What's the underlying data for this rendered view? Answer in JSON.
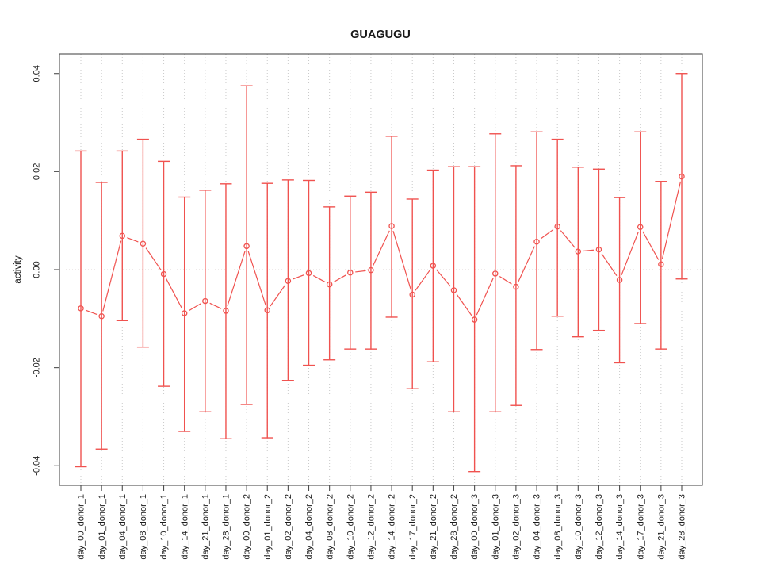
{
  "chart_data": {
    "type": "line",
    "title": "GUAGUGU",
    "xlabel": "",
    "ylabel": "activity",
    "ylim": [
      -0.044,
      0.044
    ],
    "yticks": [
      -0.04,
      -0.02,
      0,
      0.02,
      0.04
    ],
    "ytick_labels": [
      "-0.04",
      "-0.02",
      "0.00",
      "0.02",
      "0.04"
    ],
    "grid": "vertical-dotted-per-category-plus-dotted-zero-line",
    "legend": "none",
    "point_style": "open-circle-with-error-bars",
    "series_color": "#f0524f",
    "gridline_color": "#c9c9c9",
    "zero_line_color": "#dcd3d3",
    "axis_color": "#4d4d4d",
    "categories": [
      "day_00_donor_1",
      "day_01_donor_1",
      "day_04_donor_1",
      "day_08_donor_1",
      "day_10_donor_1",
      "day_14_donor_1",
      "day_21_donor_1",
      "day_28_donor_1",
      "day_00_donor_2",
      "day_01_donor_2",
      "day_02_donor_2",
      "day_04_donor_2",
      "day_08_donor_2",
      "day_10_donor_2",
      "day_12_donor_2",
      "day_14_donor_2",
      "day_17_donor_2",
      "day_21_donor_2",
      "day_28_donor_2",
      "day_00_donor_3",
      "day_01_donor_3",
      "day_02_donor_3",
      "day_04_donor_3",
      "day_08_donor_3",
      "day_10_donor_3",
      "day_12_donor_3",
      "day_14_donor_3",
      "day_17_donor_3",
      "day_21_donor_3",
      "day_28_donor_3"
    ],
    "series": [
      {
        "name": "activity",
        "center": [
          -0.0079,
          -0.0095,
          0.0069,
          0.0053,
          -0.0009,
          -0.0089,
          -0.0064,
          -0.0084,
          0.0048,
          -0.0083,
          -0.0023,
          -0.0007,
          -0.003,
          -0.0006,
          -0.0001,
          0.0089,
          -0.0051,
          0.0008,
          -0.0042,
          -0.0102,
          -0.0008,
          -0.0035,
          0.0057,
          0.0088,
          0.0037,
          0.0041,
          -0.0021,
          0.0087,
          0.0011,
          0.019
        ],
        "upper": [
          0.0242,
          0.0178,
          0.0242,
          0.0266,
          0.0221,
          0.0148,
          0.0162,
          0.0175,
          0.0375,
          0.0176,
          0.0183,
          0.0182,
          0.0128,
          0.015,
          0.0158,
          0.0272,
          0.0144,
          0.0203,
          0.021,
          0.021,
          0.0277,
          0.0212,
          0.0281,
          0.0266,
          0.0209,
          0.0205,
          0.0147,
          0.0281,
          0.018,
          0.04
        ],
        "lower": [
          -0.0402,
          -0.0366,
          -0.0104,
          -0.0158,
          -0.0238,
          -0.033,
          -0.029,
          -0.0345,
          -0.0275,
          -0.0343,
          -0.0226,
          -0.0195,
          -0.0184,
          -0.0162,
          -0.0162,
          -0.0097,
          -0.0243,
          -0.0188,
          -0.029,
          -0.0412,
          -0.029,
          -0.0277,
          -0.0163,
          -0.0095,
          -0.0137,
          -0.0124,
          -0.019,
          -0.011,
          -0.0162,
          -0.0019
        ]
      }
    ]
  }
}
